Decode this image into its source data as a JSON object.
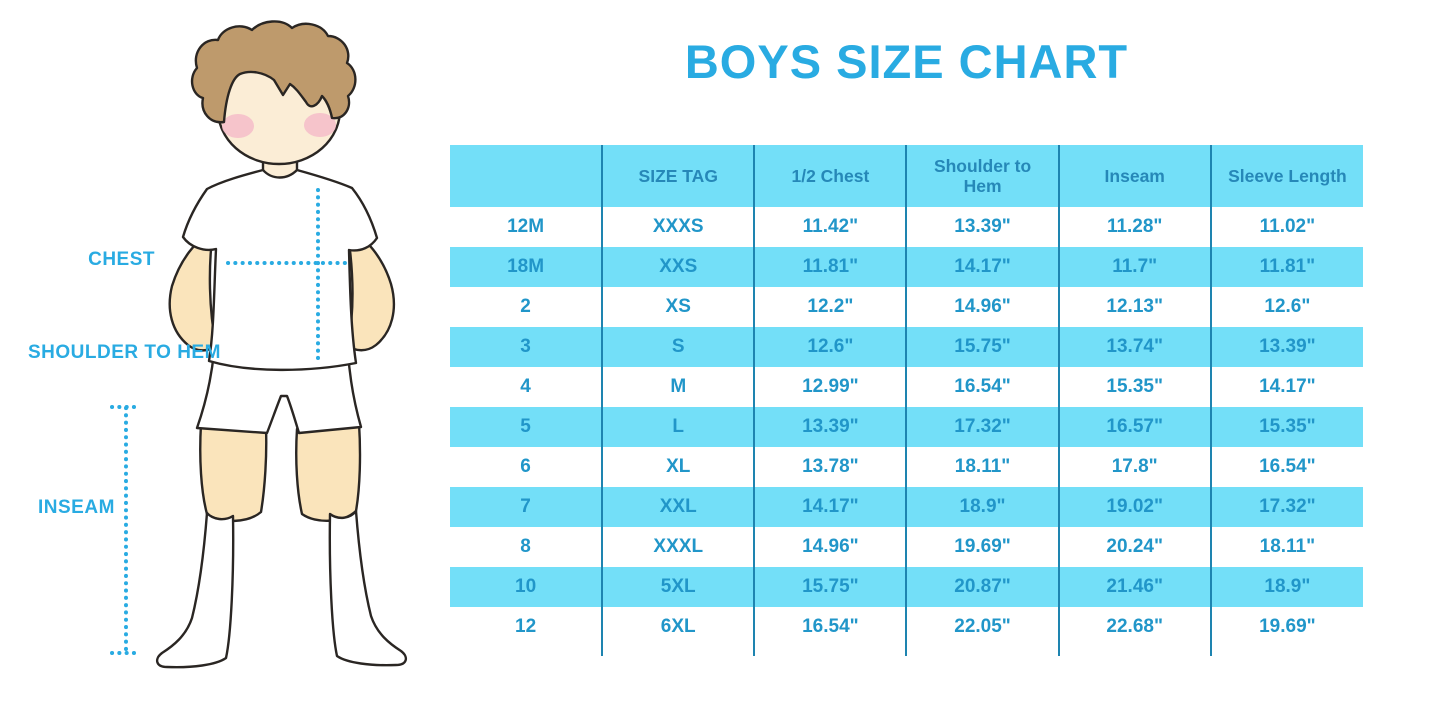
{
  "title": "BOYS SIZE CHART",
  "figure": {
    "labels": {
      "chest": "CHEST",
      "shoulder_to_hem": "SHOULDER TO HEM",
      "inseam": "INSEAM"
    }
  },
  "colors": {
    "title_blue": "#29ABE2",
    "row_light_blue": "#73DFF8",
    "table_text_blue": "#2196C9",
    "header_text_blue": "#2688B8",
    "divider_blue": "#1E84B0",
    "dotted_line_blue": "#29ABE2",
    "skin": "#FAE4BB",
    "face_skin": "#FBEDD6",
    "hair_brown": "#BE9A6C",
    "blush_pink": "#F4BCC9",
    "outline": "#2A2623"
  },
  "chart_data": {
    "type": "table",
    "title": "BOYS SIZE CHART",
    "columns": [
      "",
      "SIZE TAG",
      "1/2 Chest",
      "Shoulder to Hem",
      "Inseam",
      "Sleeve Length"
    ],
    "rows": [
      [
        "12M",
        "XXXS",
        "11.42\"",
        "13.39\"",
        "11.28\"",
        "11.02\""
      ],
      [
        "18M",
        "XXS",
        "11.81\"",
        "14.17\"",
        "11.7\"",
        "11.81\""
      ],
      [
        "2",
        "XS",
        "12.2\"",
        "14.96\"",
        "12.13\"",
        "12.6\""
      ],
      [
        "3",
        "S",
        "12.6\"",
        "15.75\"",
        "13.74\"",
        "13.39\""
      ],
      [
        "4",
        "M",
        "12.99\"",
        "16.54\"",
        "15.35\"",
        "14.17\""
      ],
      [
        "5",
        "L",
        "13.39\"",
        "17.32\"",
        "16.57\"",
        "15.35\""
      ],
      [
        "6",
        "XL",
        "13.78\"",
        "18.11\"",
        "17.8\"",
        "16.54\""
      ],
      [
        "7",
        "XXL",
        "14.17\"",
        "18.9\"",
        "19.02\"",
        "17.32\""
      ],
      [
        "8",
        "XXXL",
        "14.96\"",
        "19.69\"",
        "20.24\"",
        "18.11\""
      ],
      [
        "10",
        "5XL",
        "15.75\"",
        "20.87\"",
        "21.46\"",
        "18.9\""
      ],
      [
        "12",
        "6XL",
        "16.54\"",
        "22.05\"",
        "22.68\"",
        "19.69\""
      ]
    ],
    "layout": {
      "alternating_rows": "white / light blue, header light blue",
      "grid": "vertical column dividers only"
    }
  }
}
